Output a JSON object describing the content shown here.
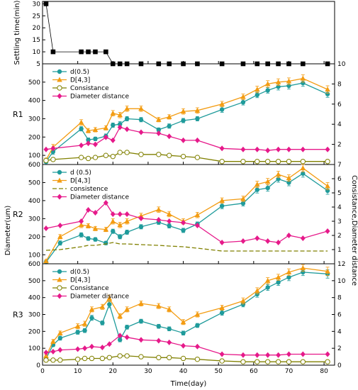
{
  "chart_data": {
    "type": "line",
    "x_label": "Time(day)",
    "x_ticks": [
      0,
      10,
      20,
      30,
      40,
      50,
      60,
      70,
      80
    ],
    "xlim": [
      0,
      83
    ],
    "left_axis_title": "Diameter(um)",
    "right_axis_title": "Consistance,Diameter distance",
    "colors": {
      "d05": "#1f9b9b",
      "d43": "#f39c12",
      "consistance": "#808000",
      "distance": "#e6198a",
      "settle": "#000000"
    },
    "panels": [
      {
        "id": "settle",
        "label": "",
        "ylabel": "Settling time(min)",
        "ylim": [
          5,
          31
        ],
        "y_ticks": [
          5,
          10,
          15,
          20,
          25,
          30
        ],
        "series": [
          {
            "key": "settle",
            "marker": "square",
            "x": [
              1,
              3,
              11,
              13,
              15,
              18,
              20,
              22,
              24,
              28,
              33,
              36,
              40,
              44,
              51,
              57,
              61,
              64,
              67,
              70,
              74,
              81
            ],
            "y": [
              30,
              10,
              10,
              10,
              10,
              10,
              5,
              5,
              5,
              5,
              5,
              5,
              5,
              5,
              5,
              5,
              5,
              5,
              5,
              5,
              5,
              5
            ]
          }
        ]
      },
      {
        "id": "R1",
        "label": "R1",
        "ylim": [
          50,
          600
        ],
        "y_ticks": [
          100,
          200,
          300,
          400,
          500
        ],
        "y2lim": [
          0,
          10
        ],
        "y2_ticks": [
          2,
          4,
          6,
          8,
          10
        ],
        "legend": [
          "d(0.5)",
          "D[4,3]",
          "Consistance",
          "Diameter distance"
        ],
        "series": [
          {
            "key": "d05",
            "marker": "circle",
            "axis": "left",
            "x": [
              1,
              3,
              11,
              13,
              15,
              18,
              20,
              22,
              24,
              28,
              33,
              36,
              40,
              44,
              51,
              57,
              61,
              64,
              67,
              70,
              74,
              81
            ],
            "y": [
              65,
              120,
              245,
              185,
              190,
              205,
              265,
              270,
              300,
              295,
              240,
              260,
              290,
              300,
              350,
              390,
              430,
              455,
              475,
              480,
              495,
              435
            ],
            "err": [
              10,
              15,
              12,
              10,
              10,
              12,
              12,
              15,
              12,
              12,
              10,
              12,
              12,
              12,
              15,
              15,
              15,
              15,
              18,
              18,
              18,
              18
            ]
          },
          {
            "key": "d43",
            "marker": "triangle",
            "axis": "left",
            "x": [
              1,
              3,
              11,
              13,
              15,
              18,
              20,
              22,
              24,
              28,
              33,
              36,
              40,
              44,
              51,
              57,
              61,
              64,
              67,
              70,
              74,
              81
            ],
            "y": [
              75,
              145,
              280,
              235,
              240,
              250,
              330,
              320,
              355,
              355,
              295,
              310,
              340,
              345,
              380,
              420,
              460,
              490,
              500,
              505,
              520,
              460
            ],
            "err": [
              10,
              15,
              15,
              12,
              12,
              12,
              15,
              15,
              15,
              15,
              12,
              12,
              15,
              15,
              15,
              15,
              18,
              18,
              18,
              18,
              20,
              20
            ]
          },
          {
            "key": "consistance",
            "marker": "open-circle",
            "axis": "right",
            "x": [
              1,
              3,
              11,
              13,
              15,
              18,
              20,
              22,
              24,
              28,
              33,
              36,
              40,
              44,
              51,
              57,
              61,
              64,
              67,
              70,
              74,
              81
            ],
            "y": [
              0.4,
              0.5,
              0.7,
              0.6,
              0.7,
              0.9,
              0.8,
              1.2,
              1.2,
              1.0,
              1.0,
              0.9,
              0.8,
              0.7,
              0.3,
              0.3,
              0.3,
              0.3,
              0.3,
              0.3,
              0.3,
              0.3
            ]
          },
          {
            "key": "distance",
            "marker": "diamond",
            "axis": "right",
            "x": [
              1,
              3,
              11,
              13,
              15,
              18,
              20,
              22,
              24,
              28,
              33,
              36,
              40,
              44,
              51,
              57,
              61,
              64,
              67,
              70,
              74,
              81
            ],
            "y": [
              1.5,
              1.6,
              1.9,
              2.1,
              2.0,
              2.7,
              2.4,
              3.7,
              3.5,
              3.2,
              3.1,
              2.8,
              2.4,
              2.4,
              1.6,
              1.5,
              1.5,
              1.4,
              1.5,
              1.5,
              1.5,
              1.5
            ]
          }
        ]
      },
      {
        "id": "R2",
        "label": "R2",
        "ylim": [
          50,
          600
        ],
        "y_ticks": [
          100,
          200,
          300,
          400,
          500,
          600
        ],
        "y2lim": [
          0,
          7
        ],
        "y2_ticks": [
          1,
          2,
          3,
          4,
          5,
          6,
          7
        ],
        "legend": [
          "d (0.5)",
          "D[4,3]",
          "consistence",
          "Diameter distance"
        ],
        "series": [
          {
            "key": "d05",
            "marker": "circle",
            "axis": "left",
            "x": [
              1,
              5,
              11,
              13,
              15,
              18,
              20,
              22,
              24,
              28,
              33,
              36,
              40,
              44,
              51,
              57,
              61,
              64,
              67,
              70,
              74,
              81
            ],
            "y": [
              60,
              165,
              210,
              190,
              185,
              165,
              230,
              200,
              225,
              255,
              280,
              260,
              235,
              270,
              370,
              385,
              460,
              470,
              520,
              500,
              550,
              455
            ],
            "err": [
              8,
              12,
              12,
              10,
              10,
              10,
              12,
              12,
              12,
              12,
              12,
              12,
              12,
              12,
              15,
              15,
              18,
              18,
              18,
              18,
              20,
              20
            ]
          },
          {
            "key": "d43",
            "marker": "triangle",
            "axis": "left",
            "x": [
              1,
              5,
              11,
              13,
              15,
              18,
              20,
              22,
              24,
              28,
              33,
              36,
              40,
              44,
              51,
              57,
              61,
              64,
              67,
              70,
              74,
              81
            ],
            "y": [
              65,
              200,
              265,
              260,
              245,
              240,
              285,
              265,
              285,
              315,
              350,
              325,
              285,
              320,
              400,
              410,
              490,
              505,
              545,
              525,
              580,
              480
            ],
            "err": [
              8,
              12,
              15,
              12,
              12,
              12,
              15,
              15,
              15,
              15,
              15,
              15,
              15,
              15,
              15,
              15,
              18,
              18,
              18,
              18,
              20,
              20
            ]
          },
          {
            "key": "consistance",
            "marker": "none",
            "axis": "right",
            "x": [
              1,
              5,
              11,
              13,
              15,
              18,
              20,
              22,
              24,
              28,
              33,
              36,
              40,
              44,
              51,
              57,
              61,
              64,
              67,
              70,
              74,
              81
            ],
            "y": [
              0.95,
              1.0,
              1.2,
              1.3,
              1.3,
              1.4,
              1.5,
              1.4,
              1.4,
              1.35,
              1.3,
              1.25,
              1.2,
              1.1,
              0.9,
              0.9,
              0.9,
              0.9,
              0.9,
              0.9,
              0.9,
              0.9
            ]
          },
          {
            "key": "distance",
            "marker": "diamond",
            "axis": "right",
            "x": [
              1,
              5,
              11,
              13,
              15,
              18,
              20,
              22,
              24,
              28,
              33,
              36,
              40,
              44,
              51,
              57,
              61,
              64,
              67,
              70,
              74,
              81
            ],
            "y": [
              2.5,
              2.7,
              3.0,
              3.8,
              3.6,
              4.3,
              3.5,
              3.5,
              3.5,
              3.2,
              3.1,
              3.0,
              2.9,
              2.7,
              1.5,
              1.6,
              1.8,
              1.6,
              1.5,
              2.0,
              1.8,
              2.3
            ]
          }
        ]
      },
      {
        "id": "R3",
        "label": "R3",
        "ylim": [
          0,
          600
        ],
        "y_ticks": [
          0,
          100,
          200,
          300,
          400,
          500,
          600
        ],
        "y2lim": [
          0,
          12
        ],
        "y2_ticks": [
          0,
          2,
          4,
          6,
          8,
          10,
          12
        ],
        "legend": [
          "d(0.5)",
          "D[4,3]",
          "Consistance",
          "Diameter distance"
        ],
        "series": [
          {
            "key": "d05",
            "marker": "circle",
            "axis": "left",
            "x": [
              1,
              3,
              5,
              10,
              12,
              14,
              17,
              19,
              22,
              24,
              28,
              33,
              36,
              40,
              44,
              51,
              57,
              61,
              64,
              67,
              70,
              74,
              81
            ],
            "y": [
              40,
              120,
              160,
              195,
              205,
              280,
              250,
              360,
              150,
              225,
              260,
              230,
              215,
              190,
              235,
              310,
              360,
              420,
              460,
              490,
              520,
              550,
              540
            ],
            "err": [
              8,
              10,
              12,
              12,
              12,
              15,
              12,
              20,
              12,
              12,
              12,
              12,
              12,
              12,
              12,
              15,
              15,
              18,
              18,
              18,
              20,
              20,
              25
            ]
          },
          {
            "key": "d43",
            "marker": "triangle",
            "axis": "left",
            "x": [
              1,
              3,
              5,
              10,
              12,
              14,
              17,
              19,
              22,
              24,
              28,
              33,
              36,
              40,
              44,
              51,
              57,
              61,
              64,
              67,
              70,
              74,
              81
            ],
            "y": [
              55,
              140,
              190,
              230,
              245,
              330,
              345,
              395,
              290,
              330,
              365,
              350,
              330,
              255,
              300,
              340,
              380,
              440,
              500,
              520,
              550,
              575,
              555
            ],
            "err": [
              8,
              12,
              12,
              15,
              15,
              15,
              15,
              20,
              15,
              15,
              15,
              15,
              15,
              15,
              15,
              15,
              18,
              18,
              18,
              18,
              20,
              20,
              25
            ]
          },
          {
            "key": "consistance",
            "marker": "open-circle",
            "axis": "right",
            "x": [
              1,
              3,
              5,
              10,
              12,
              14,
              17,
              19,
              22,
              24,
              28,
              33,
              36,
              40,
              44,
              51,
              57,
              61,
              64,
              67,
              70,
              74,
              81
            ],
            "y": [
              0.6,
              0.6,
              0.6,
              0.7,
              0.8,
              0.8,
              0.8,
              0.9,
              1.1,
              1.1,
              1.0,
              0.9,
              0.9,
              0.8,
              0.7,
              0.5,
              0.4,
              0.4,
              0.4,
              0.4,
              0.4,
              0.4,
              0.4
            ]
          },
          {
            "key": "distance",
            "marker": "diamond",
            "axis": "right",
            "x": [
              1,
              3,
              5,
              10,
              12,
              14,
              17,
              19,
              22,
              24,
              28,
              33,
              36,
              40,
              44,
              51,
              57,
              61,
              64,
              67,
              70,
              74,
              81
            ],
            "y": [
              1.5,
              1.6,
              1.8,
              1.9,
              2.0,
              2.2,
              2.1,
              2.5,
              3.5,
              3.3,
              3.0,
              2.9,
              2.7,
              2.3,
              2.2,
              1.3,
              1.2,
              1.2,
              1.2,
              1.2,
              1.3,
              1.3,
              1.3
            ]
          }
        ]
      }
    ]
  }
}
